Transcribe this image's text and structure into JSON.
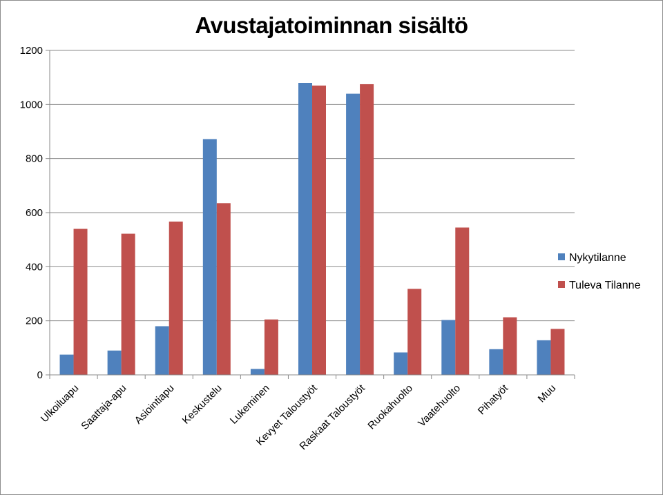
{
  "chart_data": {
    "type": "bar",
    "title": "Avustajatoiminnan sisältö",
    "xlabel": "",
    "ylabel": "",
    "ylim": [
      0,
      1200
    ],
    "yticks": [
      0,
      200,
      400,
      600,
      800,
      1000,
      1200
    ],
    "grid": true,
    "legend_position": "right",
    "categories": [
      "Ulkoiluapu",
      "Saattaja-apu",
      "Asiointiapu",
      "Keskustelu",
      "Lukeminen",
      "Kevyet Taloustyöt",
      "Raskaat Taloustyöt",
      "Ruokahuolto",
      "Vaatehuolto",
      "Pihatyöt",
      "Muu"
    ],
    "series": [
      {
        "name": "Nykytilanne",
        "color": "#4f81bd",
        "values": [
          75,
          90,
          180,
          872,
          22,
          1080,
          1040,
          83,
          203,
          95,
          128
        ]
      },
      {
        "name": "Tuleva Tilanne",
        "color": "#c0504d",
        "values": [
          540,
          522,
          567,
          635,
          205,
          1070,
          1075,
          318,
          545,
          213,
          170
        ]
      }
    ]
  }
}
